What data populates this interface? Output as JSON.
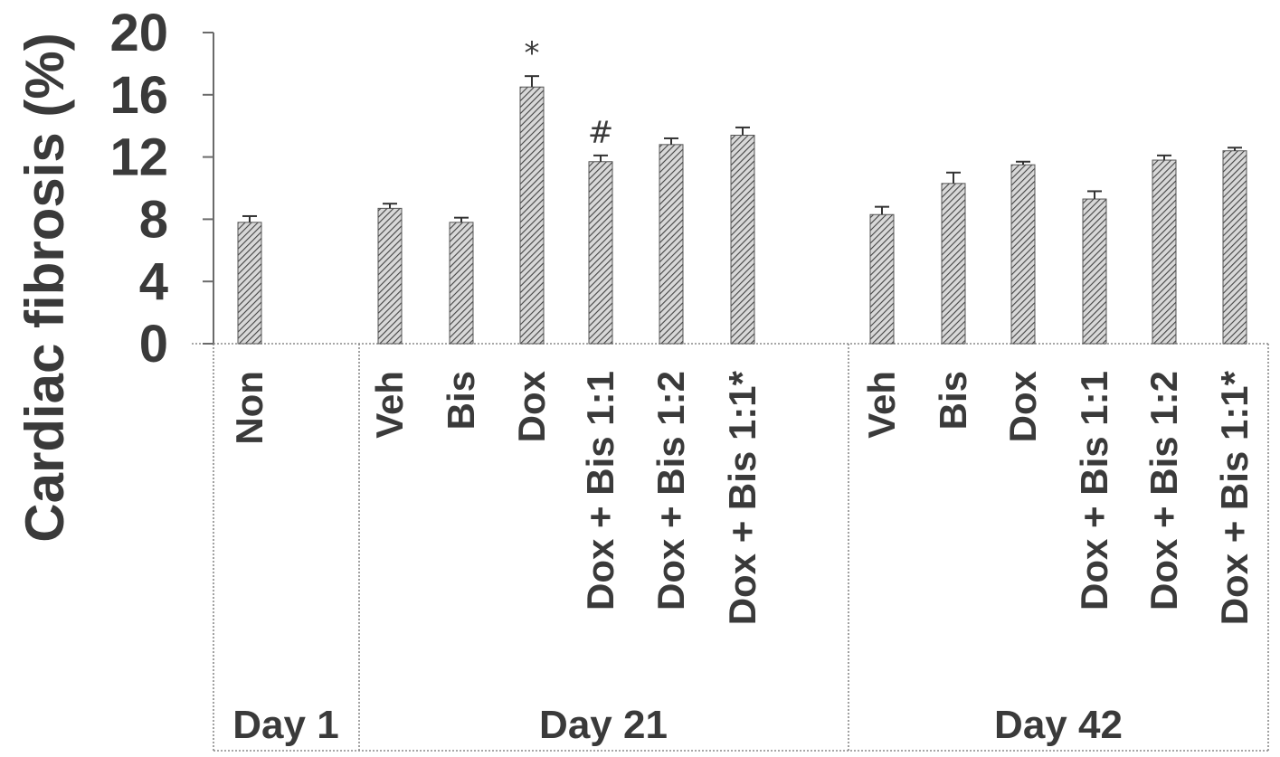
{
  "chart_data": {
    "type": "bar",
    "ylabel": "Cardiac fibrosis (%)",
    "ylim": [
      0,
      20
    ],
    "yticks": [
      0,
      4,
      8,
      12,
      16,
      20
    ],
    "grid": false,
    "groups": [
      {
        "label": "Day 1",
        "categories": [
          "Non"
        ]
      },
      {
        "label": "Day 21",
        "categories": [
          "Veh",
          "Bis",
          "Dox",
          "Dox + Bis 1:1",
          "Dox + Bis 1:2",
          "Dox + Bis 1:1*"
        ]
      },
      {
        "label": "Day 42",
        "categories": [
          "Veh",
          "Bis",
          "Dox",
          "Dox + Bis 1:1",
          "Dox + Bis 1:2",
          "Dox + Bis 1:1*"
        ]
      }
    ],
    "categories": [
      "Non",
      "Veh",
      "Bis",
      "Dox",
      "Dox + Bis 1:1",
      "Dox + Bis 1:2",
      "Dox + Bis 1:1*",
      "Veh",
      "Bis",
      "Dox",
      "Dox + Bis 1:1",
      "Dox + Bis 1:2",
      "Dox + Bis 1:1*"
    ],
    "values": [
      7.8,
      8.7,
      7.8,
      16.5,
      11.7,
      12.8,
      13.4,
      8.3,
      10.3,
      11.5,
      9.3,
      11.8,
      12.4
    ],
    "errors": [
      0.4,
      0.3,
      0.3,
      0.7,
      0.4,
      0.4,
      0.5,
      0.5,
      0.7,
      0.2,
      0.5,
      0.3,
      0.2
    ],
    "annotations": [
      "",
      "",
      "",
      "*",
      "#",
      "",
      "",
      "",
      "",
      "",
      "",
      "",
      ""
    ]
  }
}
